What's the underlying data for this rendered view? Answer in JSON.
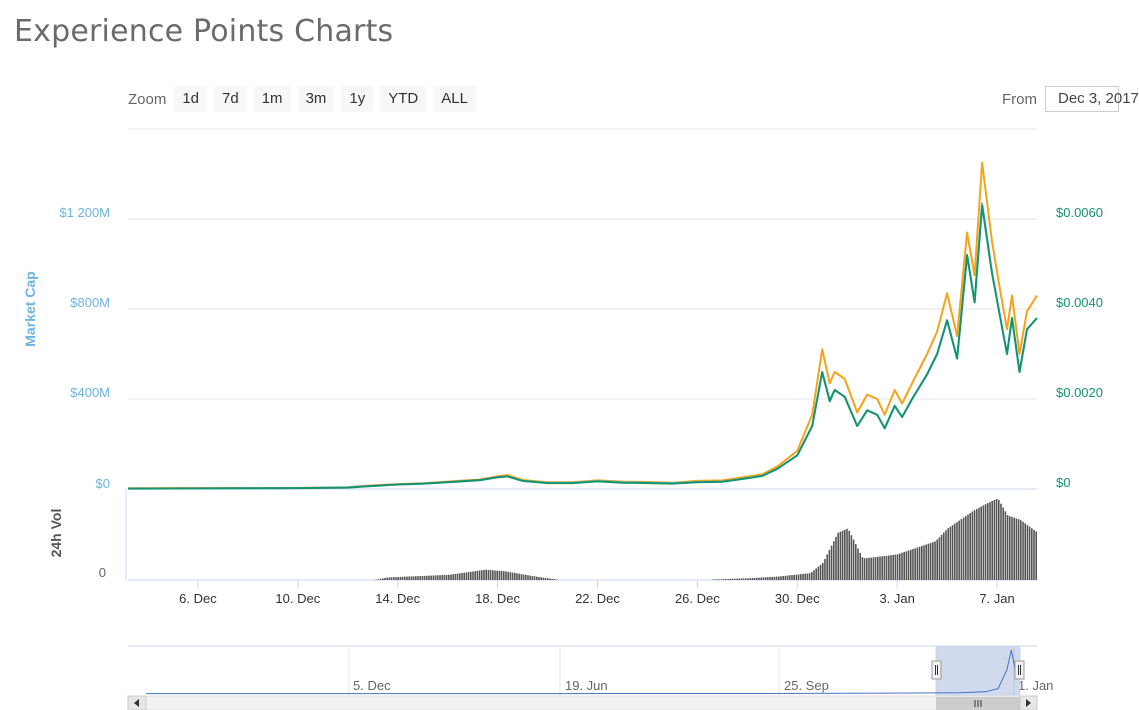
{
  "page": {
    "title": "Experience Points Charts"
  },
  "toolbar": {
    "zoom_label": "Zoom",
    "zoom_buttons": [
      "1d",
      "7d",
      "1m",
      "3m",
      "1y",
      "YTD",
      "ALL"
    ],
    "from_label": "From",
    "from_value": "Dec 3, 2017"
  },
  "colors": {
    "market_cap": "#6cb5e0",
    "price_usd": "#16946f",
    "price_btc": "#f5a31a",
    "volume": "#555555",
    "navigator": "#4572c4"
  },
  "chart_data": {
    "type": "line",
    "left_axis": {
      "label": "Market Cap",
      "ticks": [
        "$0",
        "$400M",
        "$800M",
        "$1 200M"
      ],
      "tick_values": [
        0,
        400,
        800,
        1200
      ],
      "unit": "M USD"
    },
    "right_axis": {
      "ticks": [
        "$0",
        "$0.0020",
        "$0.0040",
        "$0.0060"
      ],
      "tick_values": [
        0,
        0.002,
        0.004,
        0.006
      ]
    },
    "volume_axis": {
      "label": "24h Vol",
      "ticks": [
        "0"
      ]
    },
    "x_ticks": [
      "6. Dec",
      "10. Dec",
      "14. Dec",
      "18. Dec",
      "22. Dec",
      "26. Dec",
      "30. Dec",
      "3. Jan",
      "7. Jan"
    ],
    "x_tick_days": [
      6,
      10,
      14,
      18,
      22,
      26,
      30,
      34,
      38
    ],
    "x_range_days": [
      3.2,
      39.6
    ],
    "series": [
      {
        "key": "price_btc",
        "color": "#f5a31a",
        "x": [
          3.2,
          10,
          12,
          12.8,
          14,
          15,
          16.5,
          17.3,
          18,
          18.4,
          19,
          20,
          21,
          22,
          23,
          24,
          25,
          26,
          27,
          28,
          28.6,
          29.2,
          30,
          30.6,
          31,
          31.3,
          31.5,
          31.9,
          32.4,
          32.8,
          33.2,
          33.5,
          33.9,
          34.2,
          34.6,
          35.2,
          35.6,
          36,
          36.4,
          36.8,
          37.1,
          37.4,
          37.8,
          38.1,
          38.4,
          38.6,
          38.9,
          39.2,
          39.6
        ],
        "values": [
          3,
          5,
          8,
          15,
          22,
          25,
          37,
          42,
          57,
          62,
          40,
          30,
          30,
          38,
          33,
          31,
          28,
          36,
          38,
          55,
          65,
          100,
          170,
          330,
          620,
          470,
          520,
          490,
          340,
          420,
          400,
          330,
          440,
          380,
          470,
          600,
          700,
          870,
          680,
          1140,
          950,
          1450,
          1100,
          900,
          710,
          860,
          600,
          790,
          860
        ]
      },
      {
        "key": "market_cap",
        "color": "#6cb5e0",
        "x": [
          3.2,
          10,
          12,
          12.8,
          14,
          15,
          16.5,
          17.3,
          18,
          18.4,
          19,
          20,
          21,
          22,
          23,
          24,
          25,
          26,
          27,
          28,
          28.6,
          29.2,
          30,
          30.6,
          31,
          31.3,
          31.5,
          31.9,
          32.4,
          32.8,
          33.2,
          33.5,
          33.9,
          34.2,
          34.6,
          35.2,
          35.6,
          36,
          36.4,
          36.8,
          37.1,
          37.4,
          37.8,
          38.1,
          38.4,
          38.6,
          38.9,
          39.2,
          39.6
        ],
        "values": [
          2,
          4,
          7,
          13,
          20,
          23,
          33,
          38,
          52,
          56,
          36,
          27,
          28,
          35,
          30,
          28,
          26,
          31,
          33,
          49,
          58,
          90,
          150,
          280,
          520,
          395,
          440,
          410,
          280,
          350,
          330,
          270,
          370,
          320,
          400,
          510,
          600,
          750,
          580,
          1040,
          830,
          1270,
          960,
          780,
          600,
          760,
          520,
          710,
          760
        ]
      },
      {
        "key": "price_usd",
        "color": "#16946f",
        "x": [
          3.2,
          10,
          12,
          12.8,
          14,
          15,
          16.5,
          17.3,
          18,
          18.4,
          19,
          20,
          21,
          22,
          23,
          24,
          25,
          26,
          27,
          28,
          28.6,
          29.2,
          30,
          30.6,
          31,
          31.3,
          31.5,
          31.9,
          32.4,
          32.8,
          33.2,
          33.5,
          33.9,
          34.2,
          34.6,
          35.2,
          35.6,
          36,
          36.4,
          36.8,
          37.1,
          37.4,
          37.8,
          38.1,
          38.4,
          38.6,
          38.9,
          39.2,
          39.6
        ],
        "values": [
          1e-05,
          2e-05,
          3e-05,
          6e-05,
          0.0001,
          0.00012,
          0.00017,
          0.0002,
          0.00026,
          0.00028,
          0.00018,
          0.00013,
          0.00013,
          0.00017,
          0.00014,
          0.00013,
          0.00012,
          0.00015,
          0.00016,
          0.00024,
          0.00029,
          0.00045,
          0.00075,
          0.0014,
          0.0026,
          0.00195,
          0.0022,
          0.00205,
          0.0014,
          0.00175,
          0.00165,
          0.00135,
          0.00185,
          0.0016,
          0.002,
          0.00255,
          0.003,
          0.00375,
          0.0029,
          0.0052,
          0.00415,
          0.0063,
          0.0048,
          0.0039,
          0.003,
          0.0038,
          0.0026,
          0.00355,
          0.0038
        ]
      }
    ],
    "volume": {
      "x": [
        3.2,
        13,
        13.6,
        16,
        17.5,
        18.3,
        19.5,
        20.5,
        21,
        22.2,
        26,
        28,
        29.2,
        30.5,
        31,
        31.6,
        32,
        32.6,
        33.5,
        34,
        35.5,
        36,
        37,
        37.5,
        38,
        38.4,
        38.9,
        39.6
      ],
      "values": [
        0,
        0,
        3,
        6,
        12,
        10,
        4,
        0,
        0,
        0,
        0,
        2,
        4,
        8,
        20,
        55,
        60,
        25,
        28,
        30,
        45,
        60,
        80,
        88,
        95,
        75,
        70,
        55
      ]
    },
    "navigator": {
      "labels": [
        "5. Dec",
        "19. Jun",
        "25. Sep",
        "1. Jan"
      ],
      "series_x": [
        0,
        0.45,
        0.7,
        0.85,
        0.93,
        0.96,
        0.975,
        0.985,
        0.99,
        0.995,
        1
      ],
      "series_values": [
        0.01,
        0.01,
        0.012,
        0.02,
        0.03,
        0.05,
        0.12,
        0.55,
        1.0,
        0.5,
        0.7
      ],
      "selected_range": [
        0.916,
        1.0
      ]
    }
  }
}
